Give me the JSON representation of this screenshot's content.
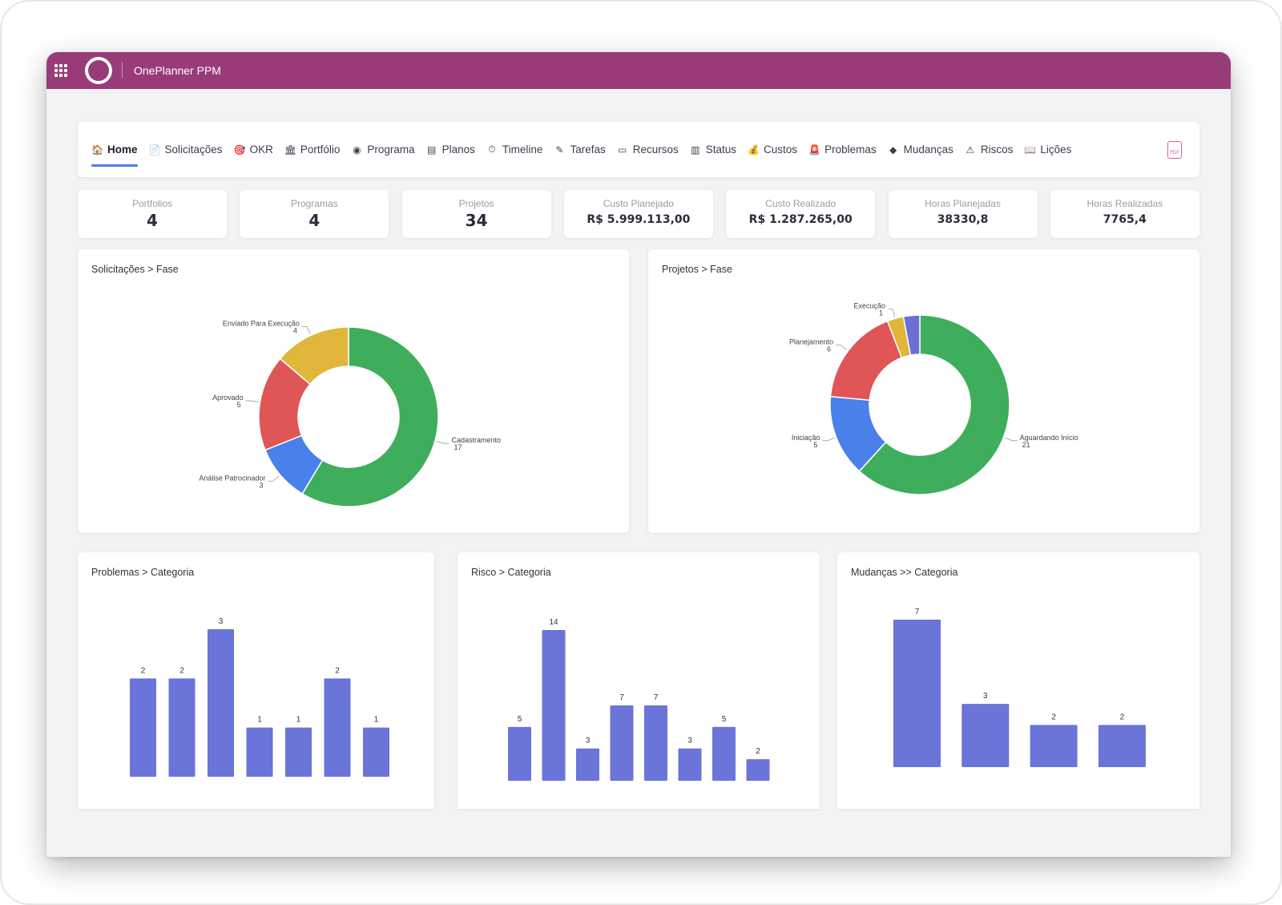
{
  "app": {
    "title": "OnePlanner PPM"
  },
  "nav": {
    "items": [
      {
        "label": "Home",
        "icon": "home-icon",
        "glyph": "🏠",
        "active": true
      },
      {
        "label": "Solicitações",
        "icon": "document-icon",
        "glyph": "📄"
      },
      {
        "label": "OKR",
        "icon": "target-icon",
        "glyph": "🎯"
      },
      {
        "label": "Portfólio",
        "icon": "bank-icon",
        "glyph": "🏛"
      },
      {
        "label": "Programa",
        "icon": "circle-icon",
        "glyph": "◉"
      },
      {
        "label": "Planos",
        "icon": "board-icon",
        "glyph": "▤"
      },
      {
        "label": "Timeline",
        "icon": "stopwatch-icon",
        "glyph": "⏱"
      },
      {
        "label": "Tarefas",
        "icon": "pencil-icon",
        "glyph": "✎"
      },
      {
        "label": "Recursos",
        "icon": "id-card-icon",
        "glyph": "▭"
      },
      {
        "label": "Status",
        "icon": "bar-chart-icon",
        "glyph": "▥"
      },
      {
        "label": "Custos",
        "icon": "money-bag-icon",
        "glyph": "💰"
      },
      {
        "label": "Problemas",
        "icon": "siren-icon",
        "glyph": "🚨"
      },
      {
        "label": "Mudanças",
        "icon": "diamond-icon",
        "glyph": "◆"
      },
      {
        "label": "Riscos",
        "icon": "warning-icon",
        "glyph": "⚠"
      },
      {
        "label": "Lições",
        "icon": "book-icon",
        "glyph": "📖"
      }
    ],
    "pdf_label": "PDF"
  },
  "kpis": [
    {
      "label": "Portfolios",
      "value": "4"
    },
    {
      "label": "Programas",
      "value": "4"
    },
    {
      "label": "Projetos",
      "value": "34"
    },
    {
      "label": "Custo Planejado",
      "value": "R$ 5.999.113,00"
    },
    {
      "label": "Custo Realizado",
      "value": "R$ 1.287.265,00"
    },
    {
      "label": "Horas Planejadas",
      "value": "38330,8"
    },
    {
      "label": "Horas Realizadas",
      "value": "7765,4"
    }
  ],
  "colors": {
    "topbar": "#993b78",
    "green": "#3fae5c",
    "blue": "#4a80ea",
    "red": "#e05555",
    "yellow": "#e0b73a",
    "purple": "#6c6fd4",
    "bar": "#6b74d9"
  },
  "chart_data": [
    {
      "id": "solicitacoes",
      "type": "pie",
      "title": "Solicitações > Fase",
      "slices": [
        {
          "label": "Cadastramento",
          "value": 17,
          "color": "#3fae5c"
        },
        {
          "label": "Análise Patrocinador",
          "value": 3,
          "color": "#4a80ea"
        },
        {
          "label": "Aprovado",
          "value": 5,
          "color": "#e05555"
        },
        {
          "label": "Enviado Para Execução",
          "value": 4,
          "color": "#e0b73a"
        }
      ]
    },
    {
      "id": "projetos",
      "type": "pie",
      "title": "Projetos > Fase",
      "slices": [
        {
          "label": "Aguardando Início",
          "value": 21,
          "color": "#3fae5c"
        },
        {
          "label": "Iniciação",
          "value": 5,
          "color": "#4a80ea"
        },
        {
          "label": "Planejamento",
          "value": 6,
          "color": "#e05555"
        },
        {
          "label": "Execução",
          "value": 1,
          "color": "#e0b73a"
        },
        {
          "label": "",
          "value": 1,
          "color": "#6c6fd4"
        }
      ]
    },
    {
      "id": "problemas",
      "type": "bar",
      "title": "Problemas > Categoria",
      "values": [
        2,
        2,
        3,
        1,
        1,
        2,
        1
      ],
      "ylim": [
        0,
        3
      ]
    },
    {
      "id": "risco",
      "type": "bar",
      "title": "Risco > Categoria",
      "values": [
        5,
        14,
        3,
        7,
        7,
        3,
        5,
        2
      ],
      "ylim": [
        0,
        14
      ]
    },
    {
      "id": "mudancas",
      "type": "bar",
      "title": "Mudanças >> Categoria",
      "values": [
        7,
        3,
        2,
        2
      ],
      "ylim": [
        0,
        7
      ]
    }
  ]
}
